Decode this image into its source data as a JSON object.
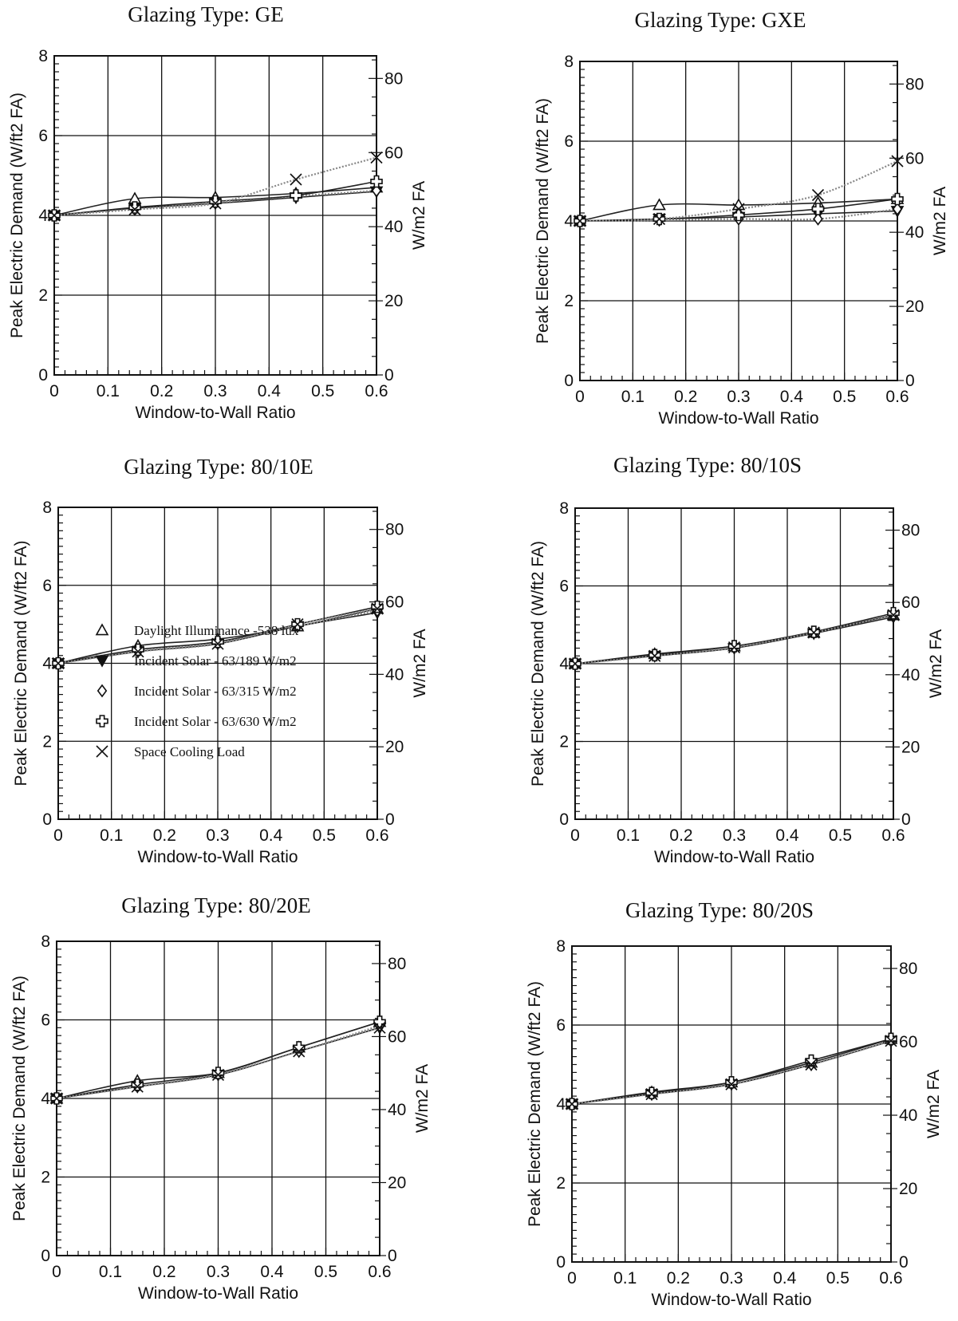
{
  "legend": [
    {
      "marker": "triangle-open",
      "label": "Daylight Illuminance -538 lux"
    },
    {
      "marker": "triangle-down-filled",
      "label": "Incident  Solar - 63/189 W/m2"
    },
    {
      "marker": "diamond-open",
      "label": "Incident  Solar -  63/315 W/m2"
    },
    {
      "marker": "cross-open",
      "label": "Incident  Solar - 63/630 W/m2"
    },
    {
      "marker": "x",
      "label": "Space Cooling Load"
    }
  ],
  "colors": {
    "axis": "#111111",
    "line": "#222222",
    "dotted": "#888888",
    "background": "#ffffff"
  },
  "chart_data": [
    {
      "type": "line",
      "title": "Glazing Type:  GE",
      "xlabel": "Window-to-Wall Ratio",
      "ylabel": "Peak Electric Demand (W/ft2 FA)",
      "y2label": "W/m2 FA",
      "xlim": [
        0,
        0.6
      ],
      "ylim": [
        0,
        8
      ],
      "y2lim": [
        0,
        86.1
      ],
      "xticks": [
        "0",
        "0.1",
        "0.2",
        "0.3",
        "0.4",
        "0.5",
        "0.6"
      ],
      "yticks": [
        "0",
        "2",
        "4",
        "6",
        "8"
      ],
      "y2ticks": [
        "0",
        "20",
        "40",
        "60",
        "80"
      ],
      "grid": true,
      "x": [
        0,
        0.15,
        0.3,
        0.45,
        0.6
      ],
      "series": [
        {
          "marker": "triangle-open",
          "values": [
            4.0,
            4.42,
            4.45,
            4.55,
            4.7
          ]
        },
        {
          "marker": "triangle-down-filled",
          "values": [
            4.0,
            4.18,
            4.3,
            4.45,
            4.6
          ]
        },
        {
          "marker": "diamond-open",
          "values": [
            4.0,
            4.15,
            4.32,
            4.48,
            4.62
          ]
        },
        {
          "marker": "cross-open",
          "values": [
            4.0,
            4.2,
            4.35,
            4.5,
            4.85
          ]
        },
        {
          "marker": "x",
          "values": [
            4.0,
            4.15,
            4.3,
            4.9,
            5.45
          ]
        }
      ]
    },
    {
      "type": "line",
      "title": "Glazing Type:  GXE",
      "xlabel": "Window-to-Wall Ratio",
      "ylabel": "Peak Electric Demand (W/ft2 FA)",
      "y2label": "W/m2 FA",
      "xlim": [
        0,
        0.6
      ],
      "ylim": [
        0,
        8
      ],
      "y2lim": [
        0,
        86.1
      ],
      "xticks": [
        "0",
        "0.1",
        "0.2",
        "0.3",
        "0.4",
        "0.5",
        "0.6"
      ],
      "yticks": [
        "0",
        "2",
        "4",
        "6",
        "8"
      ],
      "y2ticks": [
        "0",
        "20",
        "40",
        "60",
        "80"
      ],
      "grid": true,
      "x": [
        0,
        0.15,
        0.3,
        0.45,
        0.6
      ],
      "series": [
        {
          "marker": "triangle-open",
          "values": [
            4.0,
            4.4,
            4.4,
            4.45,
            4.55
          ]
        },
        {
          "marker": "triangle-down-filled",
          "values": [
            4.0,
            4.05,
            4.1,
            4.18,
            4.25
          ]
        },
        {
          "marker": "diamond-open",
          "values": [
            4.0,
            4.02,
            4.05,
            4.05,
            4.3
          ]
        },
        {
          "marker": "cross-open",
          "values": [
            4.0,
            4.05,
            4.15,
            4.3,
            4.55
          ]
        },
        {
          "marker": "x",
          "values": [
            4.0,
            4.05,
            4.3,
            4.65,
            5.5
          ]
        }
      ]
    },
    {
      "type": "line",
      "title": "Glazing Type:  80/10E",
      "xlabel": "Window-to-Wall Ratio",
      "ylabel": "Peak Electric Demand (W/ft2 FA)",
      "y2label": "W/m2 FA",
      "xlim": [
        0,
        0.6
      ],
      "ylim": [
        0,
        8
      ],
      "y2lim": [
        0,
        86.1
      ],
      "xticks": [
        "0",
        "0.1",
        "0.2",
        "0.3",
        "0.4",
        "0.5",
        "0.6"
      ],
      "yticks": [
        "0",
        "2",
        "4",
        "6",
        "8"
      ],
      "y2ticks": [
        "0",
        "20",
        "40",
        "60",
        "80"
      ],
      "grid": true,
      "x": [
        0,
        0.15,
        0.3,
        0.45,
        0.6
      ],
      "series": [
        {
          "marker": "triangle-open",
          "values": [
            4.0,
            4.45,
            4.62,
            4.95,
            5.4
          ]
        },
        {
          "marker": "triangle-down-filled",
          "values": [
            4.0,
            4.3,
            4.5,
            4.95,
            5.3
          ]
        },
        {
          "marker": "diamond-open",
          "values": [
            4.0,
            4.3,
            4.55,
            4.95,
            5.35
          ]
        },
        {
          "marker": "cross-open",
          "values": [
            4.0,
            4.35,
            4.55,
            5.0,
            5.45
          ]
        },
        {
          "marker": "x",
          "values": [
            4.0,
            4.3,
            4.5,
            5.0,
            5.4
          ]
        }
      ]
    },
    {
      "type": "line",
      "title": "Glazing Type:  80/10S",
      "xlabel": "Window-to-Wall Ratio",
      "ylabel": "Peak Electric Demand (W/ft2 FA)",
      "y2label": "W/m2 FA",
      "xlim": [
        0,
        0.6
      ],
      "ylim": [
        0,
        8
      ],
      "y2lim": [
        0,
        86.1
      ],
      "xticks": [
        "0",
        "0.1",
        "0.2",
        "0.3",
        "0.4",
        "0.5",
        "0.6"
      ],
      "yticks": [
        "0",
        "2",
        "4",
        "6",
        "8"
      ],
      "y2ticks": [
        "0",
        "20",
        "40",
        "60",
        "80"
      ],
      "grid": true,
      "x": [
        0,
        0.15,
        0.3,
        0.45,
        0.6
      ],
      "series": [
        {
          "marker": "triangle-open",
          "values": [
            4.0,
            4.25,
            4.45,
            4.8,
            5.25
          ]
        },
        {
          "marker": "triangle-down-filled",
          "values": [
            4.0,
            4.2,
            4.4,
            4.78,
            5.2
          ]
        },
        {
          "marker": "diamond-open",
          "values": [
            4.0,
            4.2,
            4.42,
            4.8,
            5.25
          ]
        },
        {
          "marker": "cross-open",
          "values": [
            4.0,
            4.22,
            4.45,
            4.82,
            5.3
          ]
        },
        {
          "marker": "x",
          "values": [
            4.0,
            4.2,
            4.42,
            4.8,
            5.25
          ]
        }
      ]
    },
    {
      "type": "line",
      "title": "Glazing Type:  80/20E",
      "xlabel": "Window-to-Wall Ratio",
      "ylabel": "Peak Electric Demand (W/ft2 FA)",
      "y2label": "W/m2 FA",
      "xlim": [
        0,
        0.6
      ],
      "ylim": [
        0,
        8
      ],
      "y2lim": [
        0,
        86.1
      ],
      "xticks": [
        "0",
        "0.1",
        "0.2",
        "0.3",
        "0.4",
        "0.5",
        "0.6"
      ],
      "yticks": [
        "0",
        "2",
        "4",
        "6",
        "8"
      ],
      "y2ticks": [
        "0",
        "20",
        "40",
        "60",
        "80"
      ],
      "grid": true,
      "x": [
        0,
        0.15,
        0.3,
        0.45,
        0.6
      ],
      "series": [
        {
          "marker": "triangle-open",
          "values": [
            4.0,
            4.45,
            4.65,
            5.3,
            5.95
          ]
        },
        {
          "marker": "triangle-down-filled",
          "values": [
            4.0,
            4.3,
            4.6,
            5.2,
            5.8
          ]
        },
        {
          "marker": "diamond-open",
          "values": [
            4.0,
            4.3,
            4.62,
            5.2,
            5.85
          ]
        },
        {
          "marker": "cross-open",
          "values": [
            4.0,
            4.35,
            4.65,
            5.3,
            5.95
          ]
        },
        {
          "marker": "x",
          "values": [
            4.0,
            4.3,
            4.6,
            5.2,
            5.8
          ]
        }
      ]
    },
    {
      "type": "line",
      "title": "Glazing Type:  80/20S",
      "xlabel": "Window-to-Wall Ratio",
      "ylabel": "Peak Electric Demand (W/ft2 FA)",
      "y2label": "W/m2 FA",
      "xlim": [
        0,
        0.6
      ],
      "ylim": [
        0,
        8
      ],
      "y2lim": [
        0,
        86.1
      ],
      "xticks": [
        "0",
        "0.1",
        "0.2",
        "0.3",
        "0.4",
        "0.5",
        "0.6"
      ],
      "yticks": [
        "0",
        "2",
        "4",
        "6",
        "8"
      ],
      "y2ticks": [
        "0",
        "20",
        "40",
        "60",
        "80"
      ],
      "grid": true,
      "x": [
        0,
        0.15,
        0.3,
        0.45,
        0.6
      ],
      "series": [
        {
          "marker": "triangle-open",
          "values": [
            4.0,
            4.3,
            4.55,
            5.05,
            5.65
          ]
        },
        {
          "marker": "triangle-down-filled",
          "values": [
            4.0,
            4.25,
            4.5,
            5.0,
            5.6
          ]
        },
        {
          "marker": "diamond-open",
          "values": [
            4.0,
            4.25,
            4.52,
            5.0,
            5.6
          ]
        },
        {
          "marker": "cross-open",
          "values": [
            4.0,
            4.28,
            4.55,
            5.1,
            5.65
          ]
        },
        {
          "marker": "x",
          "values": [
            4.0,
            4.25,
            4.5,
            5.0,
            5.6
          ]
        }
      ]
    }
  ]
}
